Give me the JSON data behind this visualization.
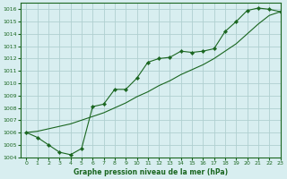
{
  "xlabel": "Graphe pression niveau de la mer (hPa)",
  "bg_color": "#d8eef0",
  "grid_color": "#b0d0d0",
  "line_color": "#1a6620",
  "xlim": [
    -0.5,
    23
  ],
  "ylim": [
    1004,
    1016.5
  ],
  "xticks": [
    0,
    1,
    2,
    3,
    4,
    5,
    6,
    7,
    8,
    9,
    10,
    11,
    12,
    13,
    14,
    15,
    16,
    17,
    18,
    19,
    20,
    21,
    22,
    23
  ],
  "yticks": [
    1004,
    1005,
    1006,
    1007,
    1008,
    1009,
    1010,
    1011,
    1012,
    1013,
    1014,
    1015,
    1016
  ],
  "series_straight": {
    "x": [
      0,
      1,
      2,
      3,
      4,
      5,
      6,
      7,
      8,
      9,
      10,
      11,
      12,
      13,
      14,
      15,
      16,
      17,
      18,
      19,
      20,
      21,
      22,
      23
    ],
    "y": [
      1006.0,
      1006.1,
      1006.3,
      1006.5,
      1006.7,
      1007.0,
      1007.3,
      1007.6,
      1008.0,
      1008.4,
      1008.9,
      1009.3,
      1009.8,
      1010.2,
      1010.7,
      1011.1,
      1011.5,
      1012.0,
      1012.6,
      1013.2,
      1014.0,
      1014.8,
      1015.5,
      1015.8
    ]
  },
  "series_curved": {
    "x": [
      0,
      1,
      2,
      3,
      4,
      5,
      6,
      7,
      8,
      9,
      10,
      11,
      12,
      13,
      14,
      15,
      16,
      17,
      18,
      19,
      20,
      21,
      22,
      23
    ],
    "y": [
      1006.0,
      1005.6,
      1005.0,
      1004.4,
      1004.2,
      1004.7,
      1008.1,
      1008.3,
      1009.5,
      1009.5,
      1010.4,
      1011.7,
      1012.0,
      1012.1,
      1012.6,
      1012.5,
      1012.6,
      1012.8,
      1014.2,
      1015.0,
      1015.9,
      1016.1,
      1016.0,
      1015.8
    ]
  }
}
